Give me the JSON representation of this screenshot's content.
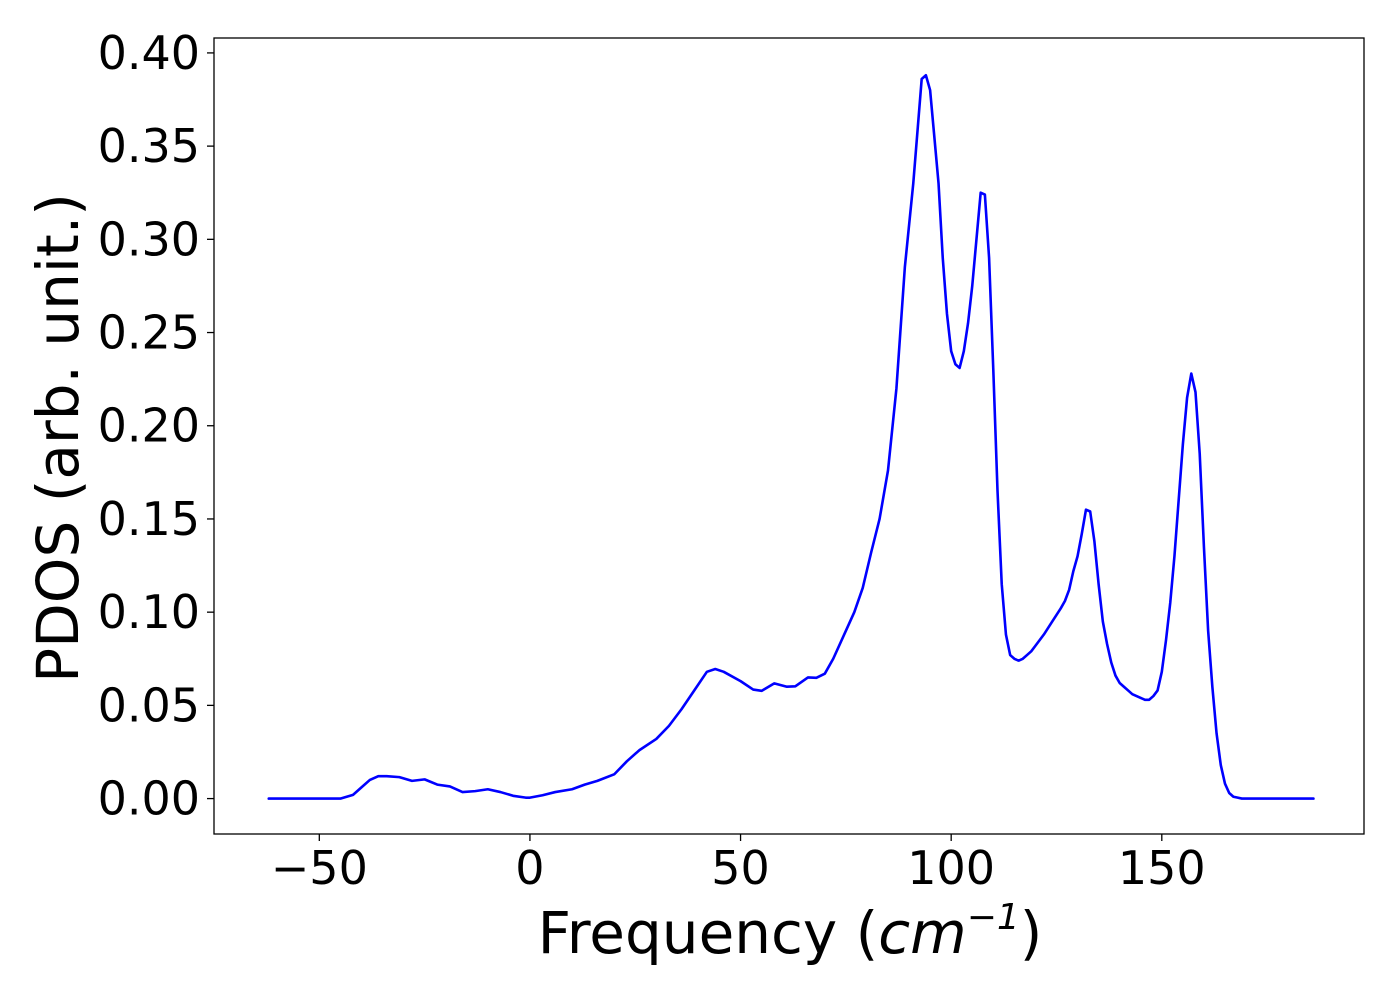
{
  "chart_data": {
    "type": "line",
    "title": "",
    "xlabel": "Frequency (",
    "xlabel_math": "cm",
    "xlabel_sup": "−1",
    "xlabel_close": ")",
    "ylabel": "PDOS (arb. unit.)",
    "xlim": [
      -75,
      198
    ],
    "ylim": [
      -0.019,
      0.408
    ],
    "x_ticks": [
      -50,
      0,
      50,
      100,
      150
    ],
    "x_tick_labels": [
      "−50",
      "0",
      "50",
      "100",
      "150"
    ],
    "y_ticks": [
      0.0,
      0.05,
      0.1,
      0.15,
      0.2,
      0.25,
      0.3,
      0.35,
      0.4
    ],
    "y_tick_labels": [
      "0.00",
      "0.05",
      "0.10",
      "0.15",
      "0.20",
      "0.25",
      "0.30",
      "0.35",
      "0.40"
    ],
    "grid": false,
    "series": [
      {
        "color": "#0000ff",
        "x": [
          -62,
          -45,
          -42,
          -40,
          -38,
          -36,
          -34,
          -31,
          -28,
          -25,
          -22,
          -19,
          -16,
          -13,
          -10,
          -7,
          -4,
          -1,
          0,
          3,
          6,
          10,
          13,
          16,
          20,
          23,
          26,
          30,
          33,
          36,
          39,
          42,
          44,
          46,
          50,
          53,
          55,
          58,
          61,
          63,
          66,
          68,
          70,
          72,
          75,
          77,
          79,
          81,
          83,
          85,
          87,
          89,
          91,
          93,
          94,
          95,
          97,
          98,
          99,
          100,
          101,
          102,
          103,
          104,
          105,
          106,
          107,
          108,
          109,
          110,
          111,
          112,
          113,
          114,
          115,
          116,
          117,
          118,
          119,
          120,
          122,
          124,
          126,
          127,
          128,
          129,
          130,
          131,
          132,
          133,
          134,
          135,
          136,
          137,
          138,
          139,
          140,
          141,
          142,
          143,
          144,
          145,
          146,
          147,
          148,
          149,
          150,
          151,
          152,
          153,
          154,
          155,
          156,
          157,
          158,
          159,
          160,
          161,
          162,
          163,
          164,
          165,
          166,
          167,
          168,
          169,
          170,
          172,
          176,
          180,
          186
        ],
        "y": [
          0.0,
          0.0,
          0.002,
          0.006,
          0.01,
          0.012,
          0.012,
          0.0115,
          0.0095,
          0.0103,
          0.0075,
          0.0065,
          0.0035,
          0.004,
          0.005,
          0.0035,
          0.0015,
          0.0005,
          0.0005,
          0.0018,
          0.0035,
          0.005,
          0.0075,
          0.0095,
          0.013,
          0.02,
          0.026,
          0.032,
          0.039,
          0.048,
          0.058,
          0.068,
          0.0695,
          0.068,
          0.063,
          0.0585,
          0.0578,
          0.0618,
          0.06,
          0.0602,
          0.065,
          0.0648,
          0.067,
          0.075,
          0.09,
          0.1,
          0.113,
          0.132,
          0.15,
          0.176,
          0.22,
          0.285,
          0.33,
          0.386,
          0.388,
          0.38,
          0.33,
          0.29,
          0.26,
          0.24,
          0.233,
          0.231,
          0.24,
          0.255,
          0.275,
          0.3,
          0.325,
          0.324,
          0.29,
          0.23,
          0.165,
          0.115,
          0.088,
          0.077,
          0.075,
          0.074,
          0.075,
          0.077,
          0.079,
          0.082,
          0.088,
          0.095,
          0.102,
          0.106,
          0.112,
          0.122,
          0.13,
          0.142,
          0.155,
          0.154,
          0.138,
          0.115,
          0.095,
          0.083,
          0.073,
          0.066,
          0.062,
          0.06,
          0.058,
          0.056,
          0.055,
          0.054,
          0.053,
          0.053,
          0.055,
          0.058,
          0.068,
          0.085,
          0.105,
          0.13,
          0.16,
          0.19,
          0.215,
          0.228,
          0.218,
          0.185,
          0.135,
          0.09,
          0.06,
          0.035,
          0.018,
          0.008,
          0.003,
          0.001,
          0.0005,
          0.0,
          0.0,
          0.0,
          0.0,
          0.0,
          0.0
        ]
      }
    ]
  }
}
